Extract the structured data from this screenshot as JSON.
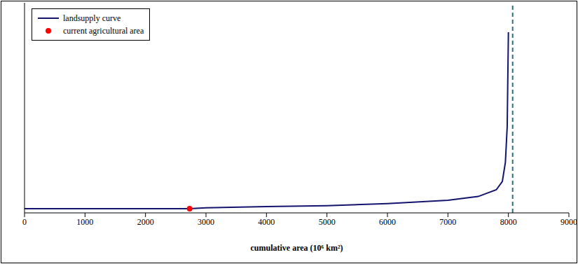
{
  "chart_data": {
    "type": "line",
    "x_label": "cumulative area (10⁶ km²)",
    "xlim": [
      0,
      9000
    ],
    "xticks": [
      0,
      1000,
      2000,
      3000,
      4000,
      5000,
      6000,
      7000,
      8000,
      9000
    ],
    "ylim": [
      0,
      10
    ],
    "tick_labels": "x",
    "grid": false,
    "legend": "upper left",
    "vertical_line": 8070,
    "vertical_line_color": "#2e7080",
    "series": [
      {
        "name": "landsupply curve",
        "type": "line",
        "color": "#14146e",
        "line_style": "solid",
        "x": [
          0,
          1000,
          2000,
          2730,
          3000,
          4000,
          5000,
          6000,
          7000,
          7500,
          7800,
          7900,
          7950,
          7980,
          8000
        ],
        "values": [
          0.2,
          0.2,
          0.2,
          0.2,
          0.24,
          0.3,
          0.34,
          0.44,
          0.6,
          0.78,
          1.1,
          1.5,
          2.4,
          4.1,
          8.6
        ]
      },
      {
        "name": "current agricultural area",
        "type": "scatter",
        "color": "#ff0000",
        "marker": "circle",
        "x": [
          2730
        ],
        "values": [
          0.2
        ]
      }
    ]
  }
}
